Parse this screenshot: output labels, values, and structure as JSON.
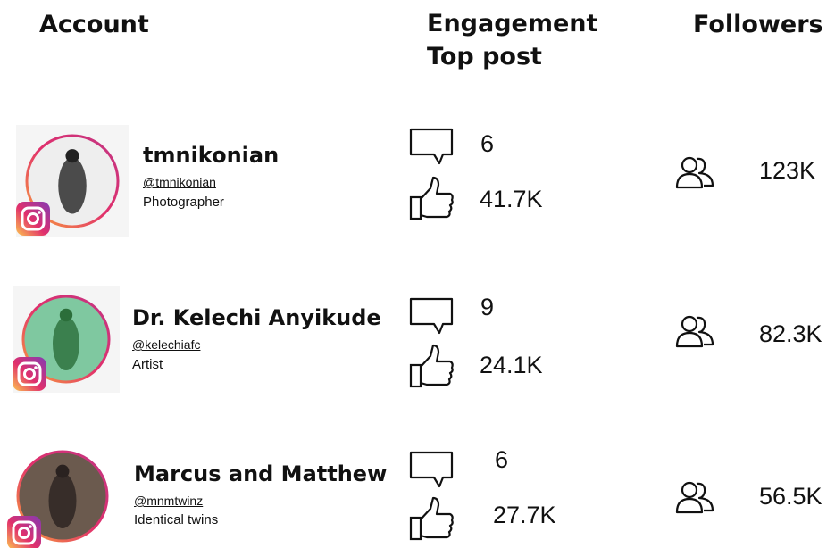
{
  "header": {
    "account": "Account",
    "engagement": "Engagement",
    "top_post": "Top post",
    "followers": "Followers"
  },
  "rows": [
    {
      "name": "tmnikonian",
      "handle": "@tmnikonian",
      "description": "Photographer",
      "comments": "6",
      "likes": "41.7K",
      "followers": "123K"
    },
    {
      "name": "Dr. Kelechi Anyikude",
      "handle": "@kelechiafc",
      "description": "Artist",
      "comments": "9",
      "likes": "24.1K",
      "followers": "82.3K"
    },
    {
      "name": "Marcus and Matthew",
      "handle": "@mnmtwinz",
      "description": "Identical twins",
      "comments": "6",
      "likes": "27.7K",
      "followers": "56.5K"
    }
  ]
}
